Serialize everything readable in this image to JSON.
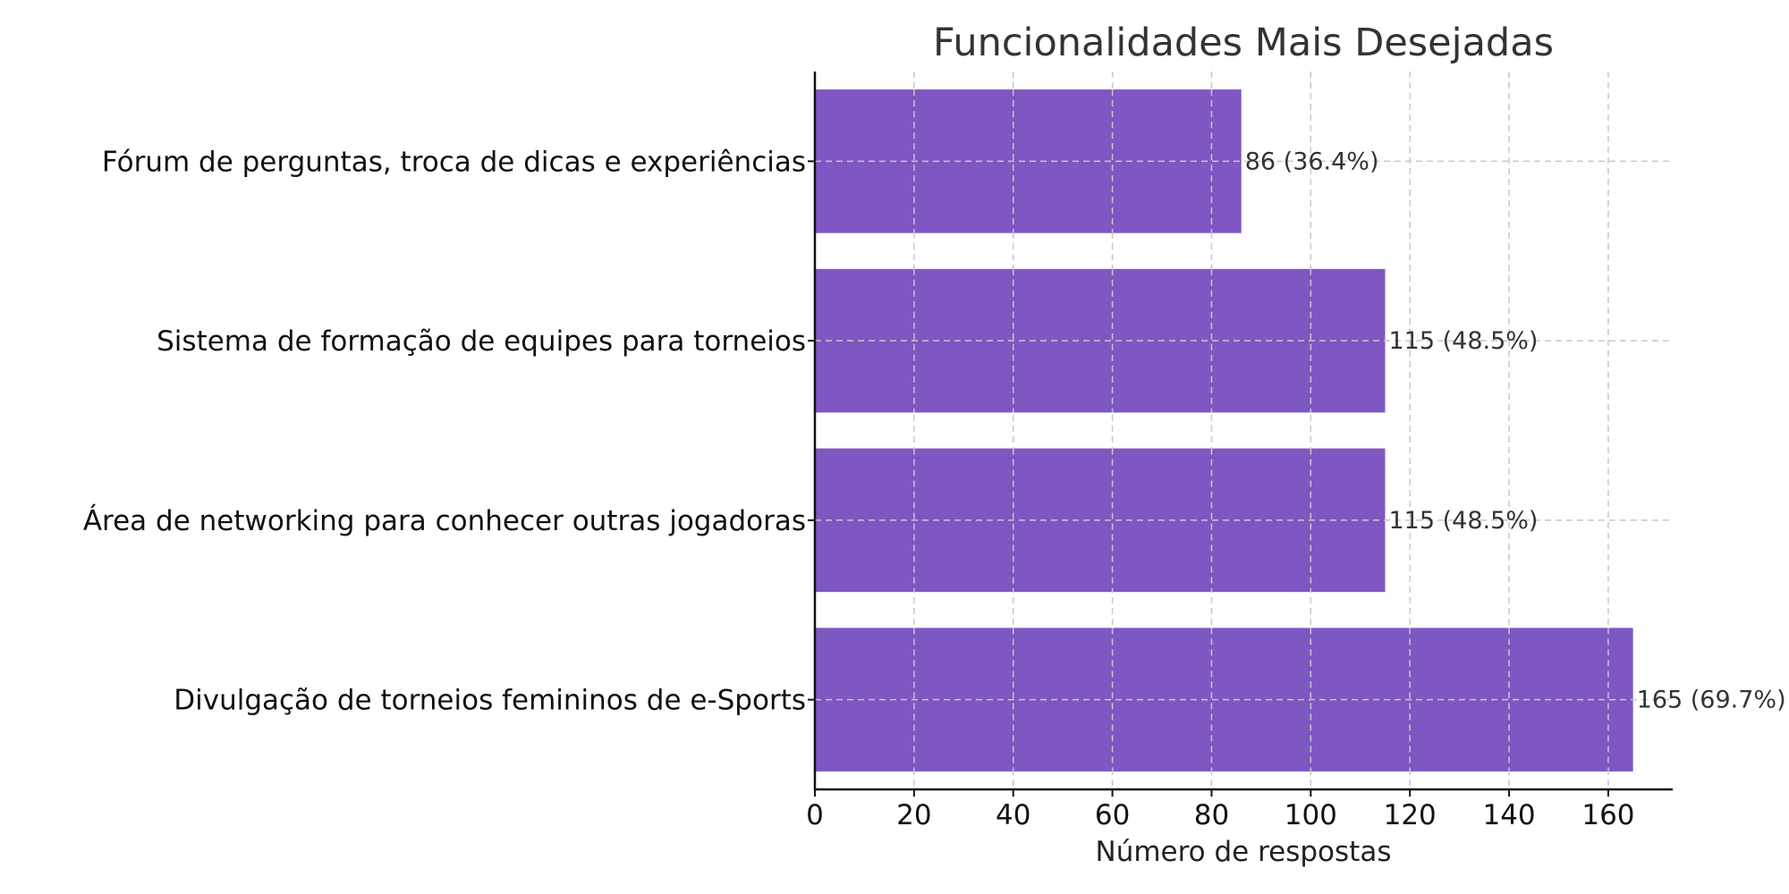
{
  "chart_data": {
    "type": "bar",
    "orientation": "horizontal",
    "title": "Funcionalidades Mais Desejadas",
    "xlabel": "Número de respostas",
    "ylabel": "",
    "categories": [
      "Fórum de perguntas, troca de dicas e experiências",
      "Sistema de formação de equipes para torneios",
      "Área de networking para conhecer outras jogadoras",
      "Divulgação de torneios femininos de e-Sports"
    ],
    "values": [
      86,
      115,
      115,
      165
    ],
    "data_labels": [
      "86 (36.4%)",
      "115 (48.5%)",
      "115 (48.5%)",
      "165 (69.7%)"
    ],
    "xticks": [
      "0",
      "20",
      "40",
      "60",
      "80",
      "100",
      "120",
      "140",
      "160"
    ],
    "xtick_values": [
      0,
      20,
      40,
      60,
      80,
      100,
      120,
      140,
      160
    ],
    "xlim": [
      0,
      173
    ],
    "grid": true,
    "bar_color": "#7e57c2"
  }
}
